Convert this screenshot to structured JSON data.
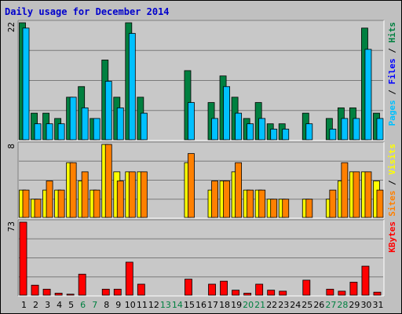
{
  "chart_data": {
    "type": "bar",
    "title": "Daily usage for December 2014",
    "days": [
      "1",
      "2",
      "3",
      "4",
      "5",
      "6",
      "7",
      "8",
      "9",
      "10",
      "11",
      "12",
      "13",
      "14",
      "15",
      "16",
      "17",
      "18",
      "19",
      "20",
      "21",
      "22",
      "23",
      "24",
      "25",
      "26",
      "27",
      "28",
      "29",
      "30",
      "31"
    ],
    "weekend_days": [
      "6",
      "7",
      "13",
      "14",
      "20",
      "21",
      "27",
      "28"
    ],
    "colors": {
      "background": "#c0c0c0",
      "plot": "#c8c8c8",
      "grid": "#7a7a7a",
      "hits": "#008040",
      "files": "#00c0ff",
      "pages": "#0080ff",
      "visits": "#ffff00",
      "sites": "#ff8000",
      "kbytes": "#ff0000",
      "weekday_label": "#000000",
      "weekend_label": "#008040"
    },
    "panels": [
      {
        "id": "usage",
        "ymax": 22,
        "ymax_label": "22",
        "legend": [
          {
            "text": "Pages",
            "color": "#00c0ff"
          },
          {
            "text": " / ",
            "color": "#000000"
          },
          {
            "text": "Files",
            "color": "#0000ff"
          },
          {
            "text": " / ",
            "color": "#000000"
          },
          {
            "text": "Hits",
            "color": "#008040"
          }
        ],
        "series": [
          {
            "name": "Hits",
            "color": "#008040",
            "values": [
              22,
              5,
              5,
              4,
              8,
              10,
              4,
              15,
              8,
              22,
              8,
              0,
              0,
              0,
              13,
              0,
              7,
              12,
              8,
              4,
              7,
              3,
              3,
              0,
              5,
              0,
              4,
              6,
              6,
              21,
              5
            ]
          },
          {
            "name": "Files",
            "color": "#00c0ff",
            "values": [
              21,
              3,
              3,
              3,
              8,
              6,
              4,
              11,
              6,
              20,
              5,
              0,
              0,
              0,
              7,
              0,
              4,
              10,
              5,
              3,
              4,
              2,
              2,
              0,
              3,
              0,
              2,
              4,
              4,
              17,
              4
            ]
          },
          {
            "name": "Pages",
            "color": "#0080ff",
            "values": [
              0,
              0,
              0,
              0,
              0,
              0,
              0,
              0,
              0,
              0,
              0,
              0,
              0,
              0,
              0,
              0,
              0,
              0,
              0,
              0,
              0,
              0,
              0,
              0,
              0,
              0,
              0,
              0,
              0,
              0,
              0
            ]
          }
        ]
      },
      {
        "id": "visits",
        "ymax": 8,
        "ymax_label": "8",
        "legend": [
          {
            "text": "Sites",
            "color": "#ff8000"
          },
          {
            "text": " / ",
            "color": "#000000"
          },
          {
            "text": "Visits",
            "color": "#ffff00"
          }
        ],
        "series": [
          {
            "name": "Visits",
            "color": "#ffff00",
            "values": [
              3,
              2,
              3,
              3,
              6,
              4,
              3,
              8,
              5,
              5,
              5,
              0,
              0,
              0,
              6,
              0,
              3,
              4,
              5,
              3,
              3,
              2,
              2,
              0,
              2,
              0,
              2,
              4,
              5,
              5,
              4
            ]
          },
          {
            "name": "Sites",
            "color": "#ff8000",
            "values": [
              3,
              2,
              4,
              3,
              6,
              5,
              3,
              8,
              4,
              5,
              5,
              0,
              0,
              0,
              7,
              0,
              4,
              4,
              6,
              3,
              3,
              2,
              2,
              0,
              2,
              0,
              3,
              6,
              5,
              5,
              3
            ]
          }
        ]
      },
      {
        "id": "kbytes",
        "ymax": 73,
        "ymax_label": "73",
        "legend": [
          {
            "text": "KBytes",
            "color": "#ff0000"
          }
        ],
        "series": [
          {
            "name": "KBytes",
            "color": "#ff0000",
            "values": [
              73,
              10,
              6,
              2,
              1,
              21,
              0,
              6,
              6,
              33,
              11,
              0,
              0,
              0,
              16,
              0,
              11,
              14,
              5,
              2,
              11,
              5,
              4,
              0,
              15,
              0,
              6,
              4,
              13,
              29,
              3
            ]
          }
        ]
      }
    ]
  }
}
